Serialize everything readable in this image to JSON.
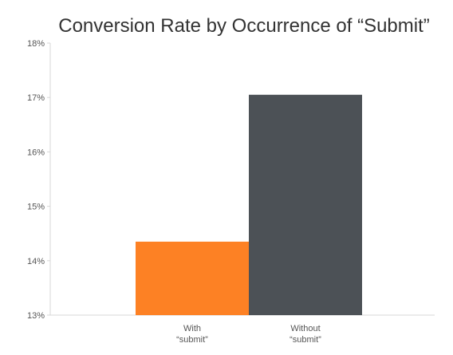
{
  "chart_data": {
    "type": "bar",
    "title": "Conversion Rate by Occurrence of “Submit”",
    "xlabel": "",
    "ylabel": "",
    "categories": [
      [
        "With",
        "“submit”"
      ],
      [
        "Without",
        "“submit”"
      ]
    ],
    "values": [
      14.35,
      17.05
    ],
    "colors": [
      "#fd8124",
      "#4c5156"
    ],
    "ylim": [
      13,
      18
    ],
    "yticks": [
      13,
      14,
      15,
      16,
      17,
      18
    ],
    "ytick_labels": [
      "13%",
      "14%",
      "15%",
      "16%",
      "17%",
      "18%"
    ],
    "grid": false,
    "legend": "none"
  }
}
